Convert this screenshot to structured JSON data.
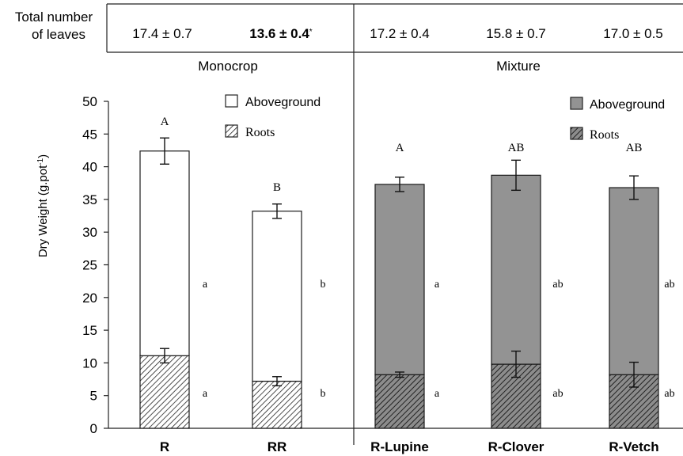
{
  "leaf_header": {
    "label_line1": "Total number",
    "label_line2": "of  leaves",
    "values": [
      "17.4 ± 0.7",
      "13.6 ± 0.4",
      "17.2 ± 0.4",
      "15.8 ± 0.7",
      "17.0 ± 0.5"
    ],
    "bold_index": 1,
    "bold_mark": "*"
  },
  "chart_data": {
    "type": "bar",
    "stacked": true,
    "ylabel": "Dry Weight (g.pot-1)",
    "ylabel_main": "Dry Weight (g.pot",
    "ylabel_sup": "-1",
    "ylabel_close": ")",
    "ylim": [
      0,
      50
    ],
    "yticks": [
      0,
      5,
      10,
      15,
      20,
      25,
      30,
      35,
      40,
      45,
      50
    ],
    "categories": [
      "R",
      "RR",
      "R-Lupine",
      "R-Clover",
      "R-Vetch"
    ],
    "groups": [
      {
        "name": "Monocrop",
        "categories": [
          "R",
          "RR"
        ]
      },
      {
        "name": "Mixture",
        "categories": [
          "R-Lupine",
          "R-Clover",
          "R-Vetch"
        ]
      }
    ],
    "series": [
      {
        "name": "Roots",
        "values": [
          11.1,
          7.2,
          8.2,
          9.8,
          8.2
        ],
        "errors": [
          1.1,
          0.7,
          0.4,
          2.0,
          1.9
        ]
      },
      {
        "name": "Aboveground",
        "values": [
          31.3,
          26.0,
          29.1,
          28.9,
          28.6
        ],
        "errors": [
          2.0,
          1.1,
          1.1,
          2.3,
          1.8
        ]
      }
    ],
    "total_letters": [
      "A",
      "B",
      "A",
      "AB",
      "AB"
    ],
    "aboveground_letters": [
      "a",
      "b",
      "a",
      "ab",
      "ab"
    ],
    "roots_letters": [
      "a",
      "b",
      "a",
      "ab",
      "ab"
    ],
    "legend_monocrop": {
      "aboveground": "Aboveground",
      "roots": "Roots"
    },
    "legend_mixture": {
      "aboveground": "Aboveground",
      "roots": "Roots"
    },
    "colors": {
      "monocrop_fill": "#ffffff",
      "mixture_fill": "#939393",
      "outline": "#1a1a1a"
    },
    "grid": false,
    "legend_position": "top-right of each group"
  }
}
